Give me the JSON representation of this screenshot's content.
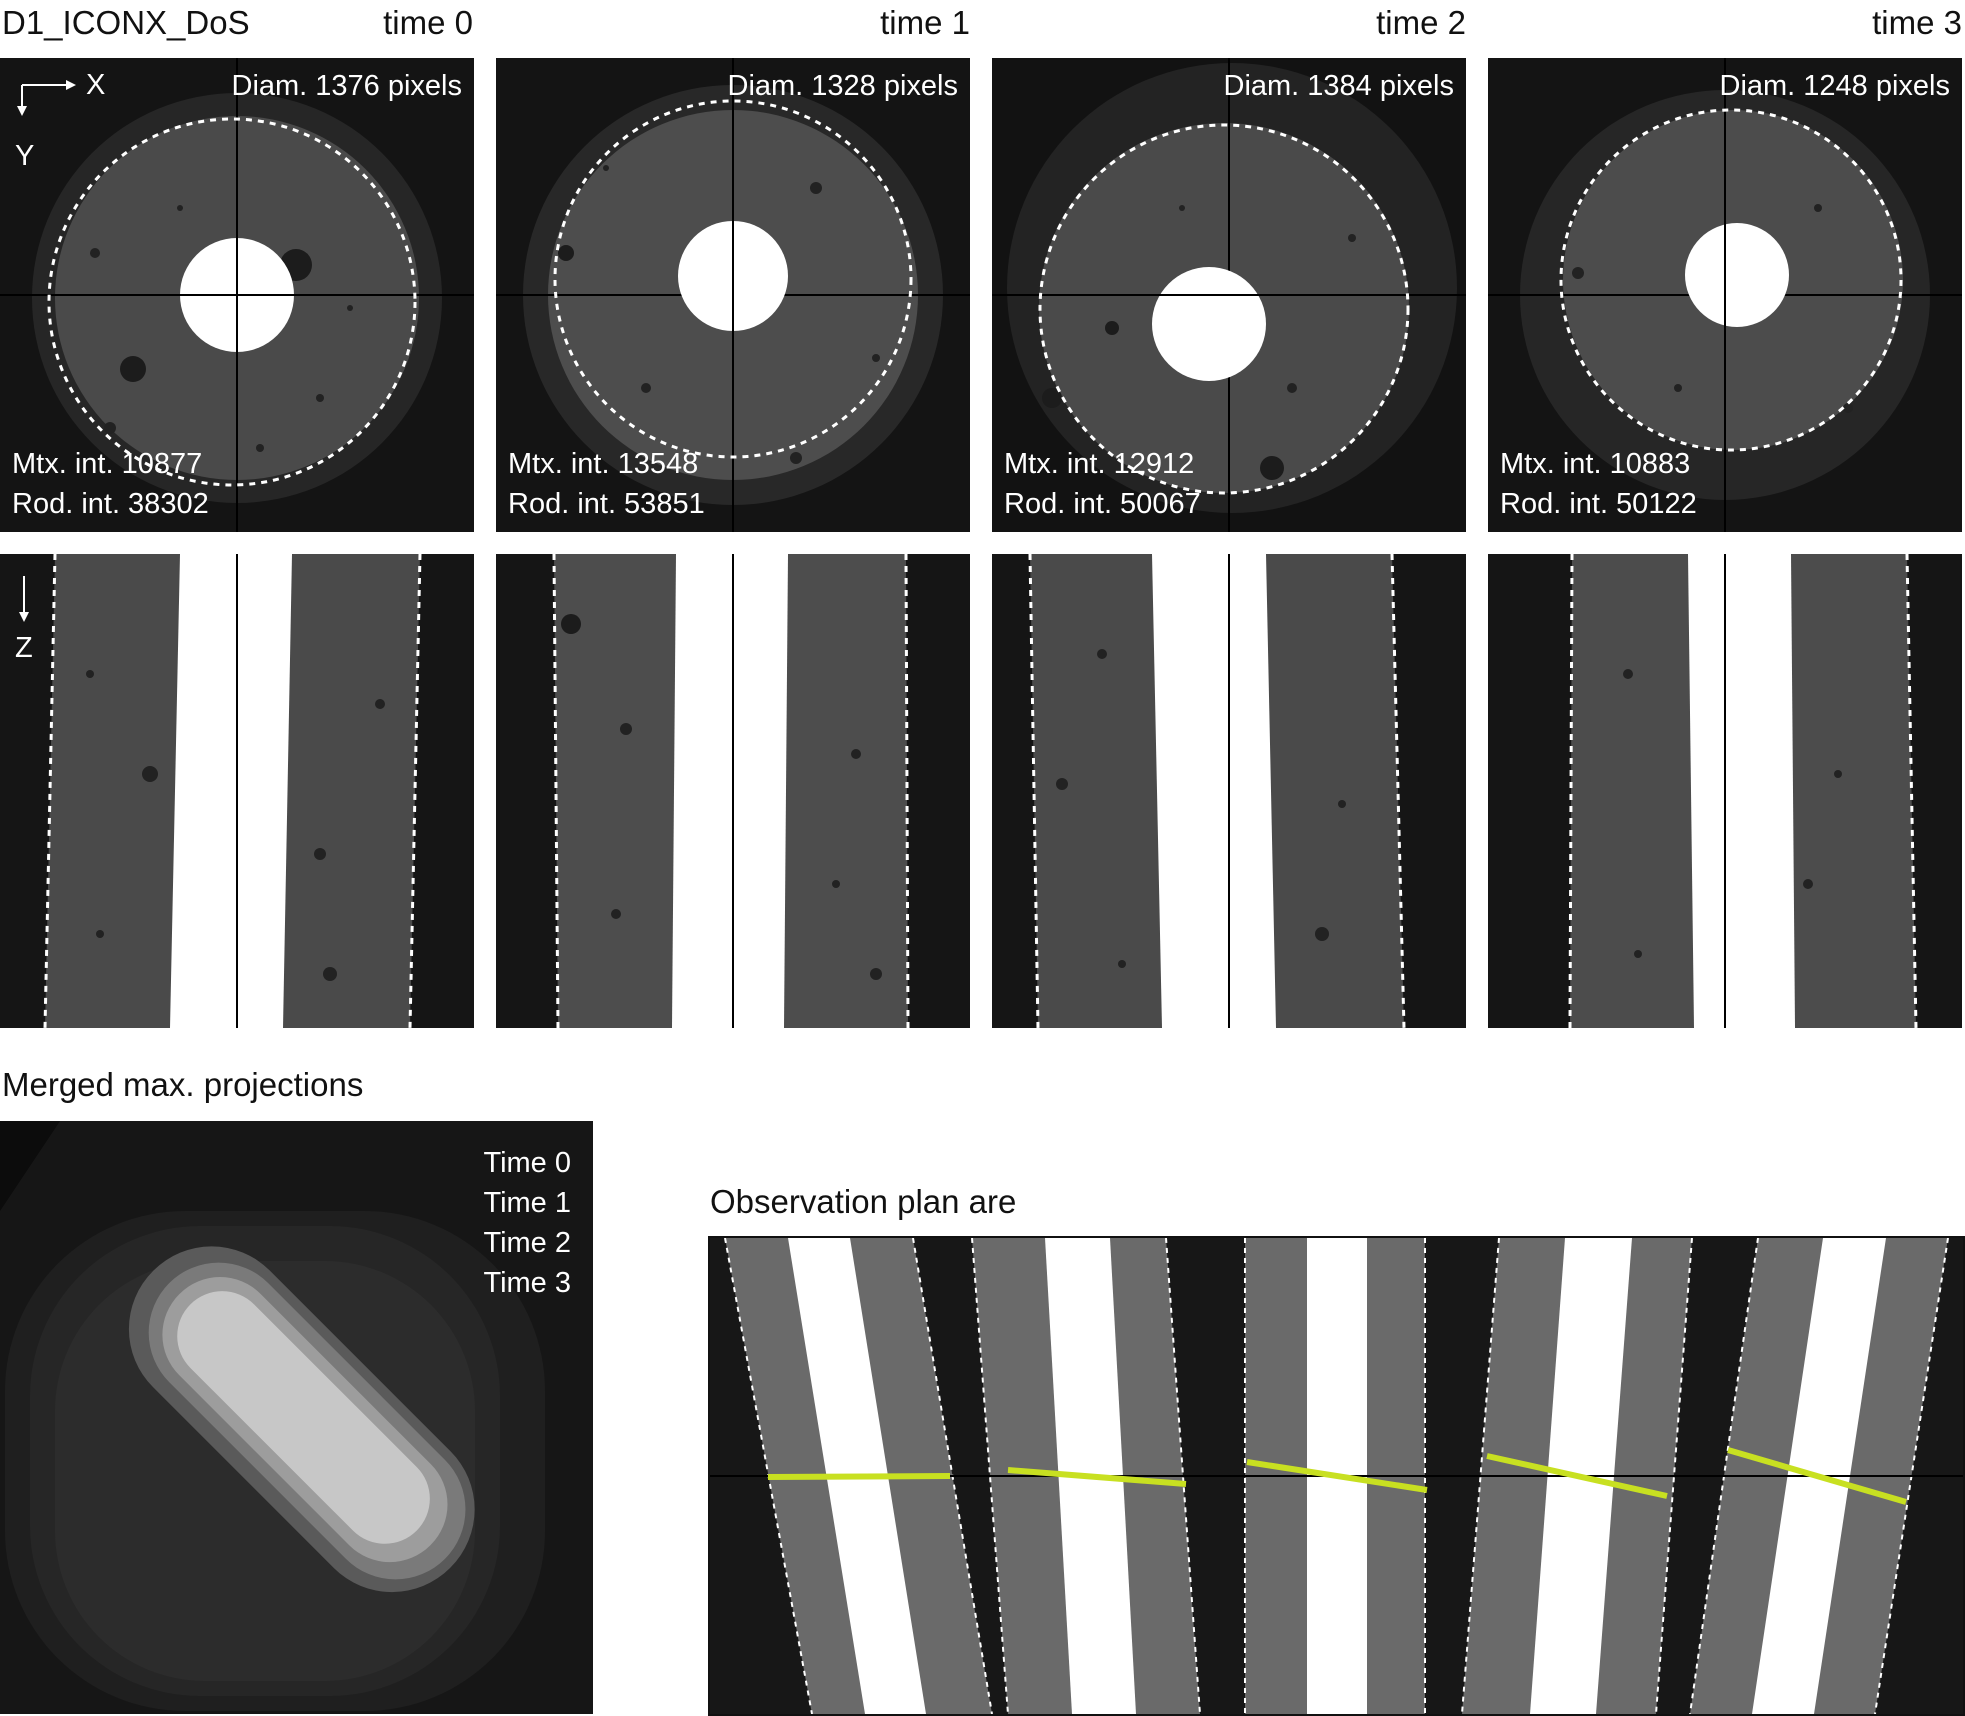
{
  "figure": {
    "title": "D1_ICONX_DoS",
    "time_labels": [
      "time 0",
      "time 1",
      "time 2",
      "time 3"
    ],
    "axis_labels": {
      "x": "X",
      "y": "Y",
      "z": "Z"
    },
    "panels": [
      {
        "diam": "Diam. 1376 pixels",
        "mtx": "Mtx. int. 10877",
        "rod": "Rod. int. 38302"
      },
      {
        "diam": "Diam. 1328 pixels",
        "mtx": "Mtx. int. 13548",
        "rod": "Rod. int. 53851"
      },
      {
        "diam": "Diam. 1384 pixels",
        "mtx": "Mtx. int. 12912",
        "rod": "Rod. int. 50067"
      },
      {
        "diam": "Diam. 1248 pixels",
        "mtx": "Mtx. int. 10883",
        "rod": "Rod. int. 50122"
      }
    ],
    "merged": {
      "title": "Merged max. projections",
      "legend": [
        "Time 0",
        "Time 1",
        "Time 2",
        "Time 3"
      ]
    },
    "observation": {
      "title": "Observation plan are"
    },
    "colors": {
      "background": "#ffffff",
      "image_bg": "#111111",
      "matrix": "#4a4a4a",
      "rod": "#ffffff",
      "dashed_outline": "#ffffff",
      "observation_line": "#c8e021"
    }
  }
}
